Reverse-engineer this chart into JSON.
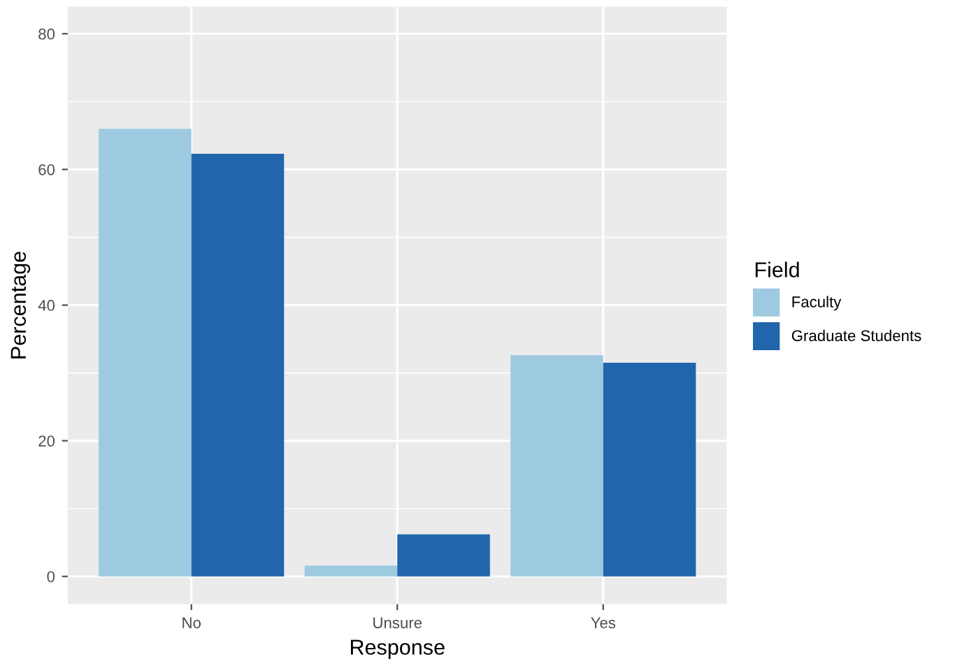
{
  "chart_data": {
    "type": "bar",
    "xlabel": "Response",
    "ylabel": "Percentage",
    "legend_title": "Field",
    "categories": [
      "No",
      "Unsure",
      "Yes"
    ],
    "series": [
      {
        "name": "Faculty",
        "color": "#9ecae1",
        "values": [
          66,
          1.6,
          32.6
        ]
      },
      {
        "name": "Graduate Students",
        "color": "#2166ac",
        "values": [
          62.3,
          6.2,
          31.5
        ]
      }
    ],
    "ylim": [
      -4.1,
      84
    ],
    "yticks": [
      0,
      20,
      40,
      60,
      80
    ],
    "grid": true,
    "legend": "right"
  }
}
